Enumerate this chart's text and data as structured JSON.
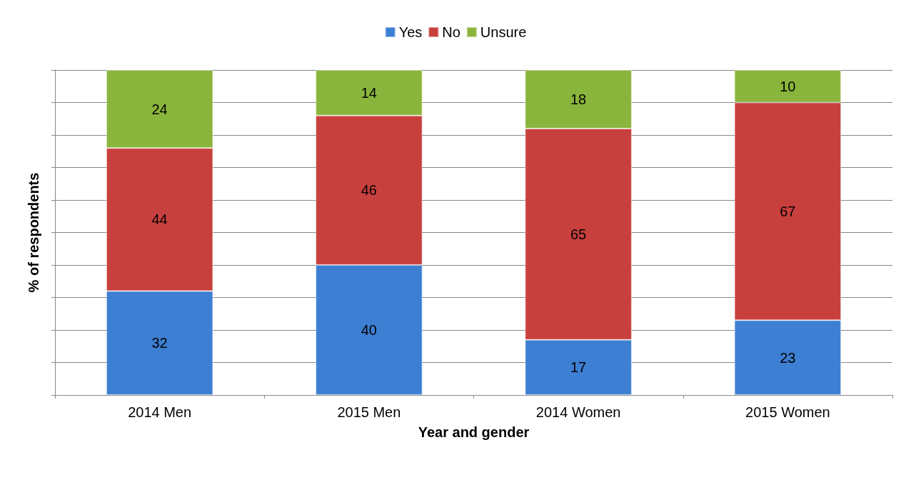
{
  "chart_data": {
    "type": "bar",
    "stacked": true,
    "xlabel": "Year and gender",
    "ylabel": "% of respondents",
    "categories": [
      "2014 Men",
      "2015 Men",
      "2014 Women",
      "2015 Women"
    ],
    "series": [
      {
        "name": "Yes",
        "color": "#3d7fd3",
        "values": [
          32,
          40,
          17,
          23
        ]
      },
      {
        "name": "No",
        "color": "#c8403d",
        "values": [
          44,
          46,
          65,
          67
        ]
      },
      {
        "name": "Unsure",
        "color": "#8ab53c",
        "values": [
          24,
          14,
          18,
          10
        ]
      }
    ],
    "ylim": [
      0,
      100
    ],
    "yticks": [
      {
        "value": 0,
        "label": null
      },
      {
        "value": 10,
        "label": null
      },
      {
        "value": 20,
        "label": null
      },
      {
        "value": 30,
        "label": null
      },
      {
        "value": 40,
        "label": null
      },
      {
        "value": 50,
        "label": null
      },
      {
        "value": 60,
        "label": null
      },
      {
        "value": 70,
        "label": null
      },
      {
        "value": 80,
        "label": null
      },
      {
        "value": 90,
        "label": null
      },
      {
        "value": 100,
        "label": null
      }
    ],
    "tick_labels": "x",
    "grid": "y",
    "legend": "top",
    "data_labels": true
  }
}
